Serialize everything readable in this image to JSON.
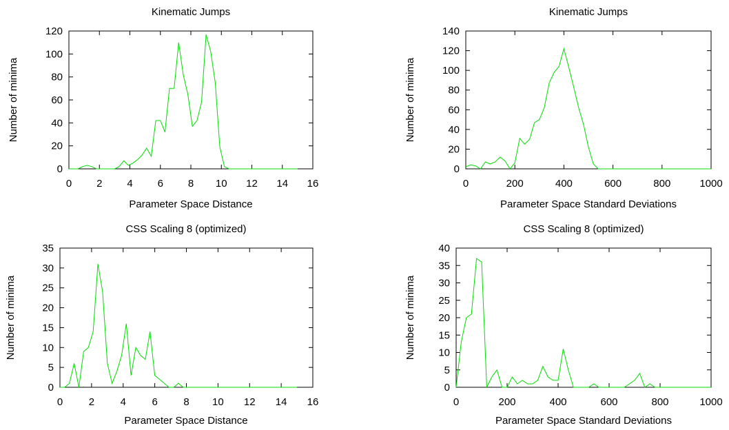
{
  "chart_data": [
    {
      "type": "line",
      "title": "Kinematic Jumps",
      "xlabel": "Parameter Space Distance",
      "ylabel": "Number of minima",
      "xlim": [
        0,
        16
      ],
      "ylim": [
        0,
        120
      ],
      "xticks": [
        0,
        2,
        4,
        6,
        8,
        10,
        12,
        14,
        16
      ],
      "yticks": [
        0,
        20,
        40,
        60,
        80,
        100,
        120
      ],
      "grid": false,
      "legend": "none",
      "series": [
        {
          "color": "#00dd00",
          "x": [
            0.0,
            0.3,
            0.6,
            0.9,
            1.2,
            1.5,
            1.8,
            2.1,
            2.4,
            2.7,
            3.0,
            3.3,
            3.6,
            3.9,
            4.2,
            4.5,
            4.8,
            5.1,
            5.4,
            5.7,
            6.0,
            6.3,
            6.6,
            6.9,
            7.2,
            7.5,
            7.8,
            8.1,
            8.4,
            8.7,
            9.0,
            9.3,
            9.6,
            9.9,
            10.2,
            10.5,
            10.8,
            11.1,
            11.4,
            11.7,
            12.0,
            12.3,
            12.6,
            12.9,
            13.2,
            13.5,
            13.8,
            14.1,
            14.4,
            14.7,
            15.0
          ],
          "y": [
            0,
            0,
            0,
            2,
            3,
            2,
            0,
            0,
            0,
            0,
            0,
            2,
            7,
            3,
            5,
            8,
            12,
            18,
            11,
            42,
            42,
            32,
            70,
            70,
            110,
            82,
            65,
            37,
            42,
            58,
            117,
            102,
            75,
            19,
            2,
            0,
            0,
            0,
            0,
            0,
            0,
            0,
            0,
            0,
            0,
            0,
            0,
            0,
            0,
            0,
            0
          ]
        }
      ]
    },
    {
      "type": "line",
      "title": "Kinematic Jumps",
      "xlabel": "Parameter Space Standard Deviations",
      "ylabel": "Number of minima",
      "xlim": [
        0,
        1000
      ],
      "ylim": [
        0,
        140
      ],
      "xticks": [
        0,
        200,
        400,
        600,
        800,
        1000
      ],
      "yticks": [
        0,
        20,
        40,
        60,
        80,
        100,
        120,
        140
      ],
      "grid": false,
      "legend": "none",
      "series": [
        {
          "color": "#00dd00",
          "x": [
            0,
            20,
            40,
            60,
            80,
            100,
            120,
            140,
            160,
            180,
            200,
            220,
            240,
            260,
            280,
            300,
            320,
            340,
            360,
            380,
            400,
            420,
            440,
            460,
            480,
            500,
            520,
            540,
            560,
            580,
            600,
            620,
            640,
            660,
            680,
            700,
            720,
            740,
            760,
            780,
            800,
            820,
            840,
            860,
            880,
            900,
            920,
            940,
            960,
            980,
            1000
          ],
          "y": [
            2,
            4,
            3,
            0,
            7,
            5,
            7,
            12,
            8,
            0,
            6,
            31,
            25,
            30,
            47,
            50,
            62,
            87,
            98,
            104,
            122,
            103,
            83,
            62,
            45,
            22,
            5,
            0,
            0,
            0,
            0,
            0,
            0,
            0,
            0,
            0,
            0,
            0,
            0,
            0,
            0,
            0,
            0,
            0,
            0,
            0,
            0,
            0,
            0,
            0,
            0
          ]
        }
      ]
    },
    {
      "type": "line",
      "title": "CSS Scaling 8 (optimized)",
      "xlabel": "Parameter Space Distance",
      "ylabel": "Number of minima",
      "xlim": [
        0,
        16
      ],
      "ylim": [
        0,
        35
      ],
      "xticks": [
        0,
        2,
        4,
        6,
        8,
        10,
        12,
        14,
        16
      ],
      "yticks": [
        0,
        5,
        10,
        15,
        20,
        25,
        30,
        35
      ],
      "grid": false,
      "legend": "none",
      "series": [
        {
          "color": "#00dd00",
          "x": [
            0.0,
            0.3,
            0.6,
            0.9,
            1.2,
            1.5,
            1.8,
            2.1,
            2.4,
            2.7,
            3.0,
            3.3,
            3.6,
            3.9,
            4.2,
            4.5,
            4.8,
            5.1,
            5.4,
            5.7,
            6.0,
            6.3,
            6.6,
            6.9,
            7.2,
            7.5,
            7.8,
            8.1,
            8.4,
            8.7,
            9.0,
            9.3,
            9.6,
            9.9,
            10.2,
            10.5,
            10.8,
            11.1,
            11.4,
            11.7,
            12.0,
            12.3,
            12.6,
            12.9,
            13.2,
            13.5,
            13.8,
            14.1,
            14.4,
            14.7,
            15.0
          ],
          "y": [
            0,
            0,
            1,
            6,
            0,
            9,
            10,
            14,
            31,
            24,
            6,
            1,
            4,
            8,
            16,
            3,
            10,
            8,
            7,
            14,
            3,
            2,
            1,
            0,
            0,
            1,
            0,
            0,
            0,
            0,
            0,
            0,
            0,
            0,
            0,
            0,
            0,
            0,
            0,
            0,
            0,
            0,
            0,
            0,
            0,
            0,
            0,
            0,
            0,
            0,
            0
          ]
        }
      ]
    },
    {
      "type": "line",
      "title": "CSS Scaling 8 (optimized)",
      "xlabel": "Parameter Space Standard Deviations",
      "ylabel": "Number of minima",
      "xlim": [
        0,
        1000
      ],
      "ylim": [
        0,
        40
      ],
      "xticks": [
        0,
        200,
        400,
        600,
        800,
        1000
      ],
      "yticks": [
        0,
        5,
        10,
        15,
        20,
        25,
        30,
        35,
        40
      ],
      "grid": false,
      "legend": "none",
      "series": [
        {
          "color": "#00dd00",
          "x": [
            0,
            20,
            40,
            60,
            80,
            100,
            120,
            140,
            160,
            180,
            200,
            220,
            240,
            260,
            280,
            300,
            320,
            340,
            360,
            380,
            400,
            420,
            440,
            460,
            480,
            500,
            520,
            540,
            560,
            580,
            600,
            620,
            640,
            660,
            680,
            700,
            720,
            740,
            760,
            780,
            800,
            820,
            840,
            860,
            880,
            900,
            920,
            940,
            960,
            980,
            1000
          ],
          "y": [
            0,
            13,
            20,
            21,
            37,
            36,
            0,
            3,
            5,
            0,
            0,
            3,
            1,
            2,
            1,
            1,
            2,
            6,
            3,
            2,
            2,
            11,
            5,
            0,
            0,
            0,
            0,
            1,
            0,
            0,
            0,
            0,
            0,
            0,
            1,
            2,
            4,
            0,
            1,
            0,
            0,
            0,
            0,
            0,
            0,
            0,
            0,
            0,
            0,
            0,
            0
          ]
        }
      ]
    }
  ]
}
